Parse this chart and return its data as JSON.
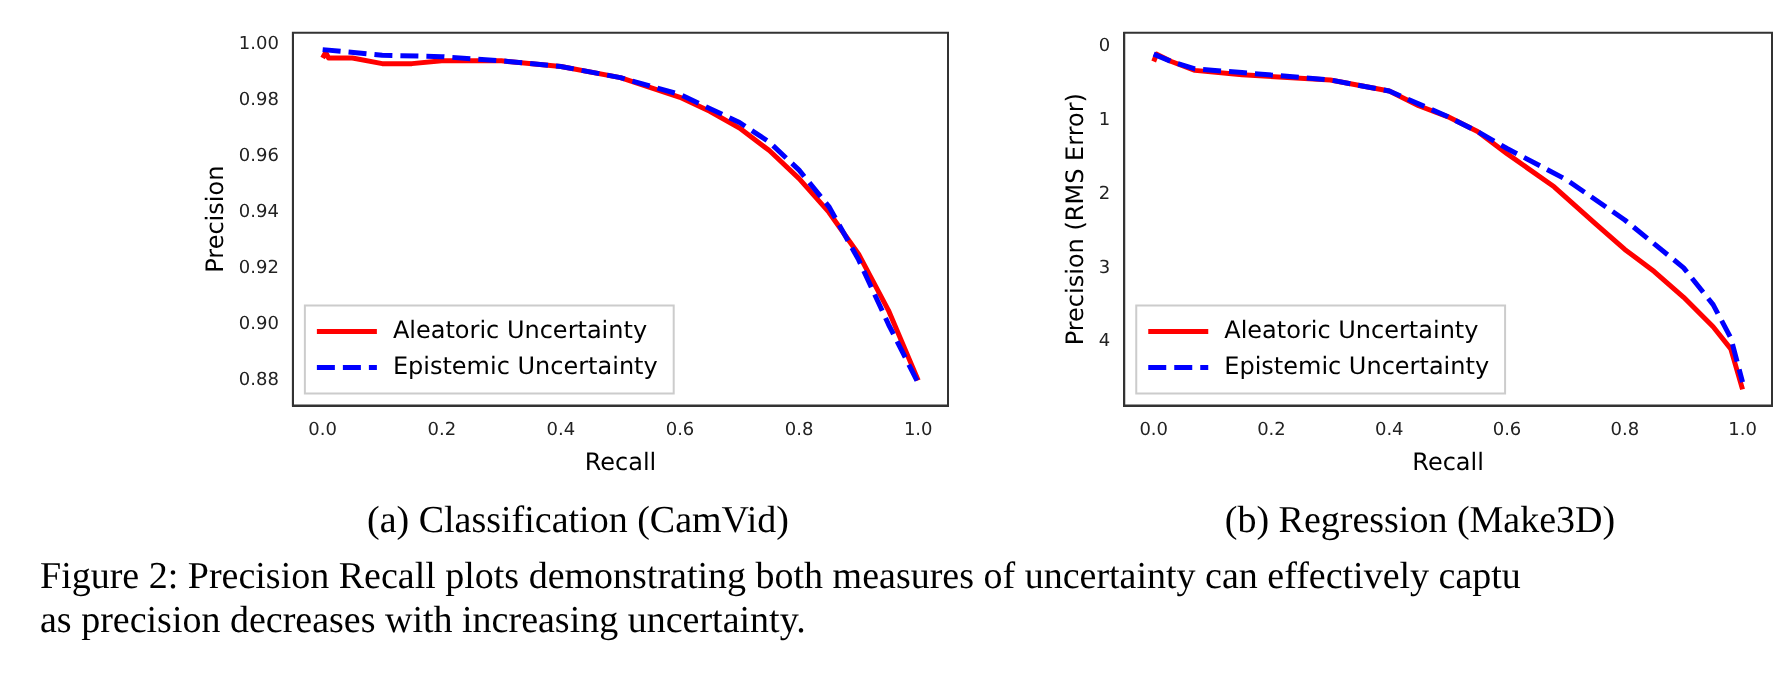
{
  "chart_data": [
    {
      "type": "line",
      "title": "(a) Classification (CamVid)",
      "xlabel": "Recall",
      "ylabel": "Precision",
      "xlim": [
        -0.05,
        1.05
      ],
      "ylim": [
        0.871,
        1.004
      ],
      "xticks": [
        {
          "value": 0,
          "label": "0.0"
        },
        {
          "value": 0.2,
          "label": "0.2"
        },
        {
          "value": 0.4,
          "label": "0.4"
        },
        {
          "value": 0.6,
          "label": "0.6"
        },
        {
          "value": 0.8,
          "label": "0.8"
        },
        {
          "value": 1,
          "label": "1.0"
        }
      ],
      "yticks": [
        {
          "value": 0.88,
          "label": "0.88"
        },
        {
          "value": 0.9,
          "label": "0.90"
        },
        {
          "value": 0.92,
          "label": "0.92"
        },
        {
          "value": 0.94,
          "label": "0.94"
        },
        {
          "value": 0.96,
          "label": "0.96"
        },
        {
          "value": 0.98,
          "label": "0.98"
        },
        {
          "value": 1,
          "label": "1.00"
        }
      ],
      "grid": false,
      "legend": "bottom left",
      "marker": "none",
      "series": [
        {
          "name": "Aleatoric Uncertainty",
          "color": "#ff0000",
          "line_style": "solid",
          "x": [
            0,
            0.005,
            0.01,
            0.05,
            0.1,
            0.15,
            0.2,
            0.3,
            0.4,
            0.5,
            0.6,
            0.65,
            0.7,
            0.75,
            0.8,
            0.85,
            0.9,
            0.95,
            1.0
          ],
          "values": [
            0.995,
            0.997,
            0.995,
            0.995,
            0.993,
            0.993,
            0.994,
            0.994,
            0.992,
            0.988,
            0.981,
            0.976,
            0.97,
            0.962,
            0.952,
            0.94,
            0.925,
            0.905,
            0.88
          ]
        },
        {
          "name": "Epistemic Uncertainty",
          "color": "#0000ff",
          "line_style": "dashed",
          "x": [
            0,
            0.1,
            0.2,
            0.3,
            0.4,
            0.5,
            0.6,
            0.7,
            0.75,
            0.8,
            0.85,
            0.9,
            0.95,
            1.0
          ],
          "values": [
            0.998,
            0.996,
            0.9955,
            0.994,
            0.992,
            0.988,
            0.982,
            0.972,
            0.965,
            0.955,
            0.942,
            0.923,
            0.9,
            0.879
          ]
        }
      ],
      "annotations": [
        "Figure 2: Precision Recall plots demonstrating both measures of uncertainty can effectively captu",
        "as precision decreases with increasing uncertainty."
      ]
    },
    {
      "type": "line",
      "title": "(b) Regression (Make3D)",
      "xlabel": "Recall",
      "ylabel": "Precision (RMS Error)",
      "xlim": [
        -0.05,
        1.05
      ],
      "ylim": [
        4.87,
        -0.19
      ],
      "xticks": [
        {
          "value": 0,
          "label": "0.0"
        },
        {
          "value": 0.2,
          "label": "0.2"
        },
        {
          "value": 0.4,
          "label": "0.4"
        },
        {
          "value": 0.6,
          "label": "0.6"
        },
        {
          "value": 0.8,
          "label": "0.8"
        },
        {
          "value": 1,
          "label": "1.0"
        }
      ],
      "yticks": [
        0,
        1,
        2,
        3,
        4
      ],
      "grid": false,
      "legend": "bottom left",
      "marker": "none",
      "series": [
        {
          "name": "Aleatoric Uncertainty",
          "color": "#ff0000",
          "line_style": "solid",
          "x": [
            0,
            0.005,
            0.03,
            0.07,
            0.15,
            0.3,
            0.4,
            0.45,
            0.5,
            0.55,
            0.6,
            0.68,
            0.75,
            0.8,
            0.85,
            0.9,
            0.95,
            0.98,
            1.0
          ],
          "values": [
            0.2,
            0.1,
            0.2,
            0.32,
            0.38,
            0.45,
            0.6,
            0.8,
            0.95,
            1.15,
            1.45,
            1.9,
            2.4,
            2.75,
            3.05,
            3.4,
            3.8,
            4.1,
            4.65
          ]
        },
        {
          "name": "Epistemic Uncertainty",
          "color": "#0000ff",
          "line_style": "dashed",
          "x": [
            0,
            0.03,
            0.07,
            0.15,
            0.3,
            0.4,
            0.5,
            0.55,
            0.6,
            0.7,
            0.8,
            0.9,
            0.95,
            0.98,
            1.0
          ],
          "values": [
            0.1,
            0.2,
            0.3,
            0.35,
            0.45,
            0.6,
            0.95,
            1.15,
            1.38,
            1.8,
            2.35,
            3.0,
            3.5,
            3.95,
            4.55
          ]
        }
      ]
    }
  ]
}
